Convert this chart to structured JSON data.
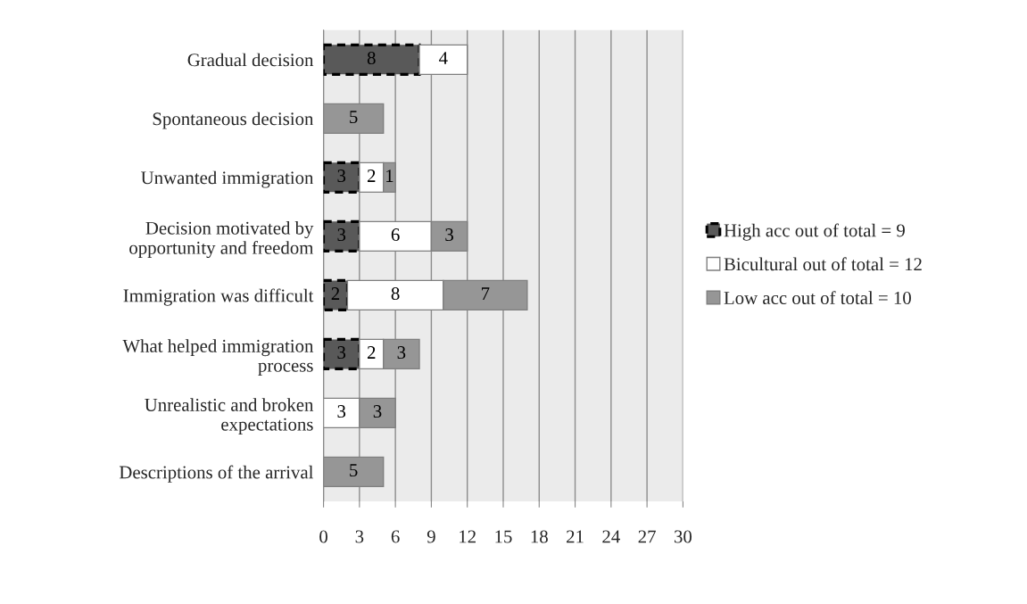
{
  "chart_data": {
    "type": "bar",
    "orientation": "horizontal",
    "stacked": true,
    "categories": [
      "Gradual decision",
      "Spontaneous decision",
      "Unwanted immigration",
      "Decision motivated by\nopportunity and freedom",
      "Immigration was difficult",
      "What helped immigration\nprocess",
      "Unrealistic and broken\nexpectations",
      "Descriptions of the arrival"
    ],
    "series": [
      {
        "name": "High acc out of total = 9",
        "color": "#595959",
        "line_style": "dashed",
        "values": [
          8,
          null,
          3,
          3,
          2,
          3,
          null,
          null
        ]
      },
      {
        "name": "Bicultural out of total = 12",
        "color": "#ffffff",
        "line_style": "solid",
        "values": [
          4,
          null,
          2,
          6,
          8,
          2,
          3,
          null
        ]
      },
      {
        "name": "Low acc out of total = 10",
        "color": "#969696",
        "line_style": "solid",
        "values": [
          null,
          5,
          1,
          3,
          7,
          3,
          3,
          5
        ]
      }
    ],
    "xlim": [
      0,
      30
    ],
    "xticks": [
      0,
      3,
      6,
      9,
      12,
      15,
      18,
      21,
      24,
      27,
      30
    ],
    "grid": "x",
    "legend": "right",
    "data_labels": true
  }
}
